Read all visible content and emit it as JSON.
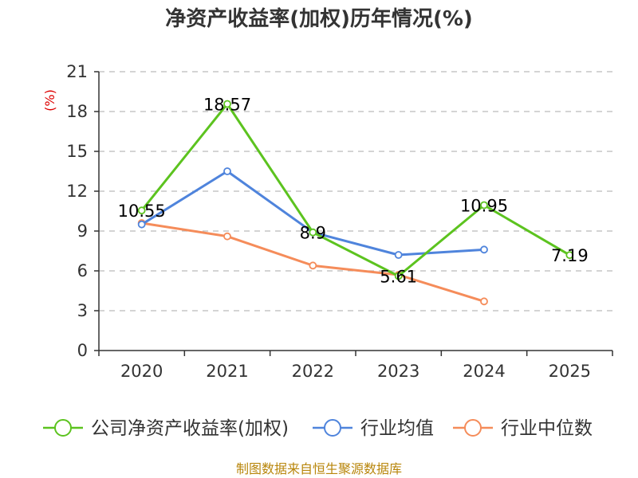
{
  "chart_data": {
    "type": "line",
    "title": "净资产收益率(加权)历年情况(%)",
    "ylabel": "(%)",
    "xlabel": "",
    "categories": [
      "2020",
      "2021",
      "2022",
      "2023",
      "2024",
      "2025"
    ],
    "ylim": [
      0,
      21
    ],
    "yticks": [
      0,
      3,
      6,
      9,
      12,
      15,
      18,
      21
    ],
    "grid": true,
    "legend_position": "bottom",
    "series": [
      {
        "name": "公司净资产收益率(加权)",
        "color": "#5cc31f",
        "values": [
          10.55,
          18.57,
          8.9,
          5.61,
          10.95,
          7.19
        ],
        "show_labels": true
      },
      {
        "name": "行业均值",
        "color": "#4f84dc",
        "values": [
          9.5,
          13.5,
          8.9,
          7.2,
          7.6,
          null
        ],
        "show_labels": false
      },
      {
        "name": "行业中位数",
        "color": "#f58c5a",
        "values": [
          9.6,
          8.6,
          6.4,
          5.7,
          3.7,
          null
        ],
        "show_labels": false
      }
    ],
    "data_labels": [
      "10.55",
      "18.57",
      "8.9",
      "5.61",
      "10.95",
      "7.19"
    ]
  },
  "footer": {
    "source": "制图数据来自恒生聚源数据库"
  }
}
